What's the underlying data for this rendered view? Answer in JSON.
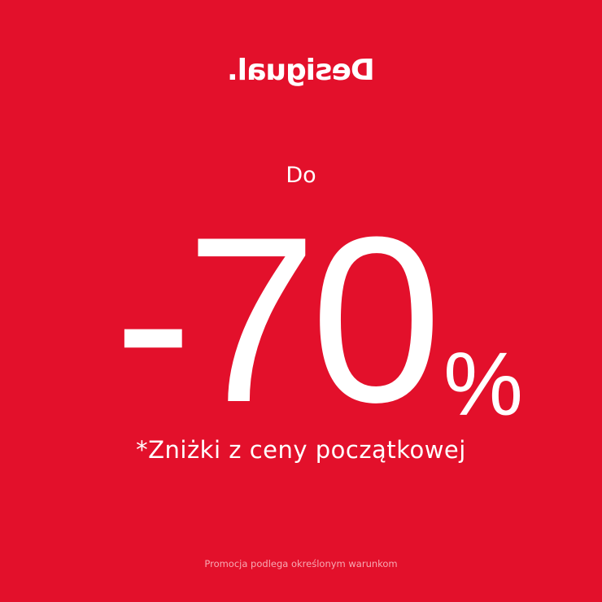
{
  "brand": {
    "logo_text": "Desigual.",
    "logo_mirrored": true
  },
  "promo": {
    "prefix": "Do",
    "discount": "-70",
    "percent_sign": "%",
    "subtitle": "*Zniżki z ceny początkowej",
    "footnote": "Promocja podlega określonym warunkom"
  },
  "colors": {
    "background": "#e3102b",
    "text": "#ffffff"
  }
}
